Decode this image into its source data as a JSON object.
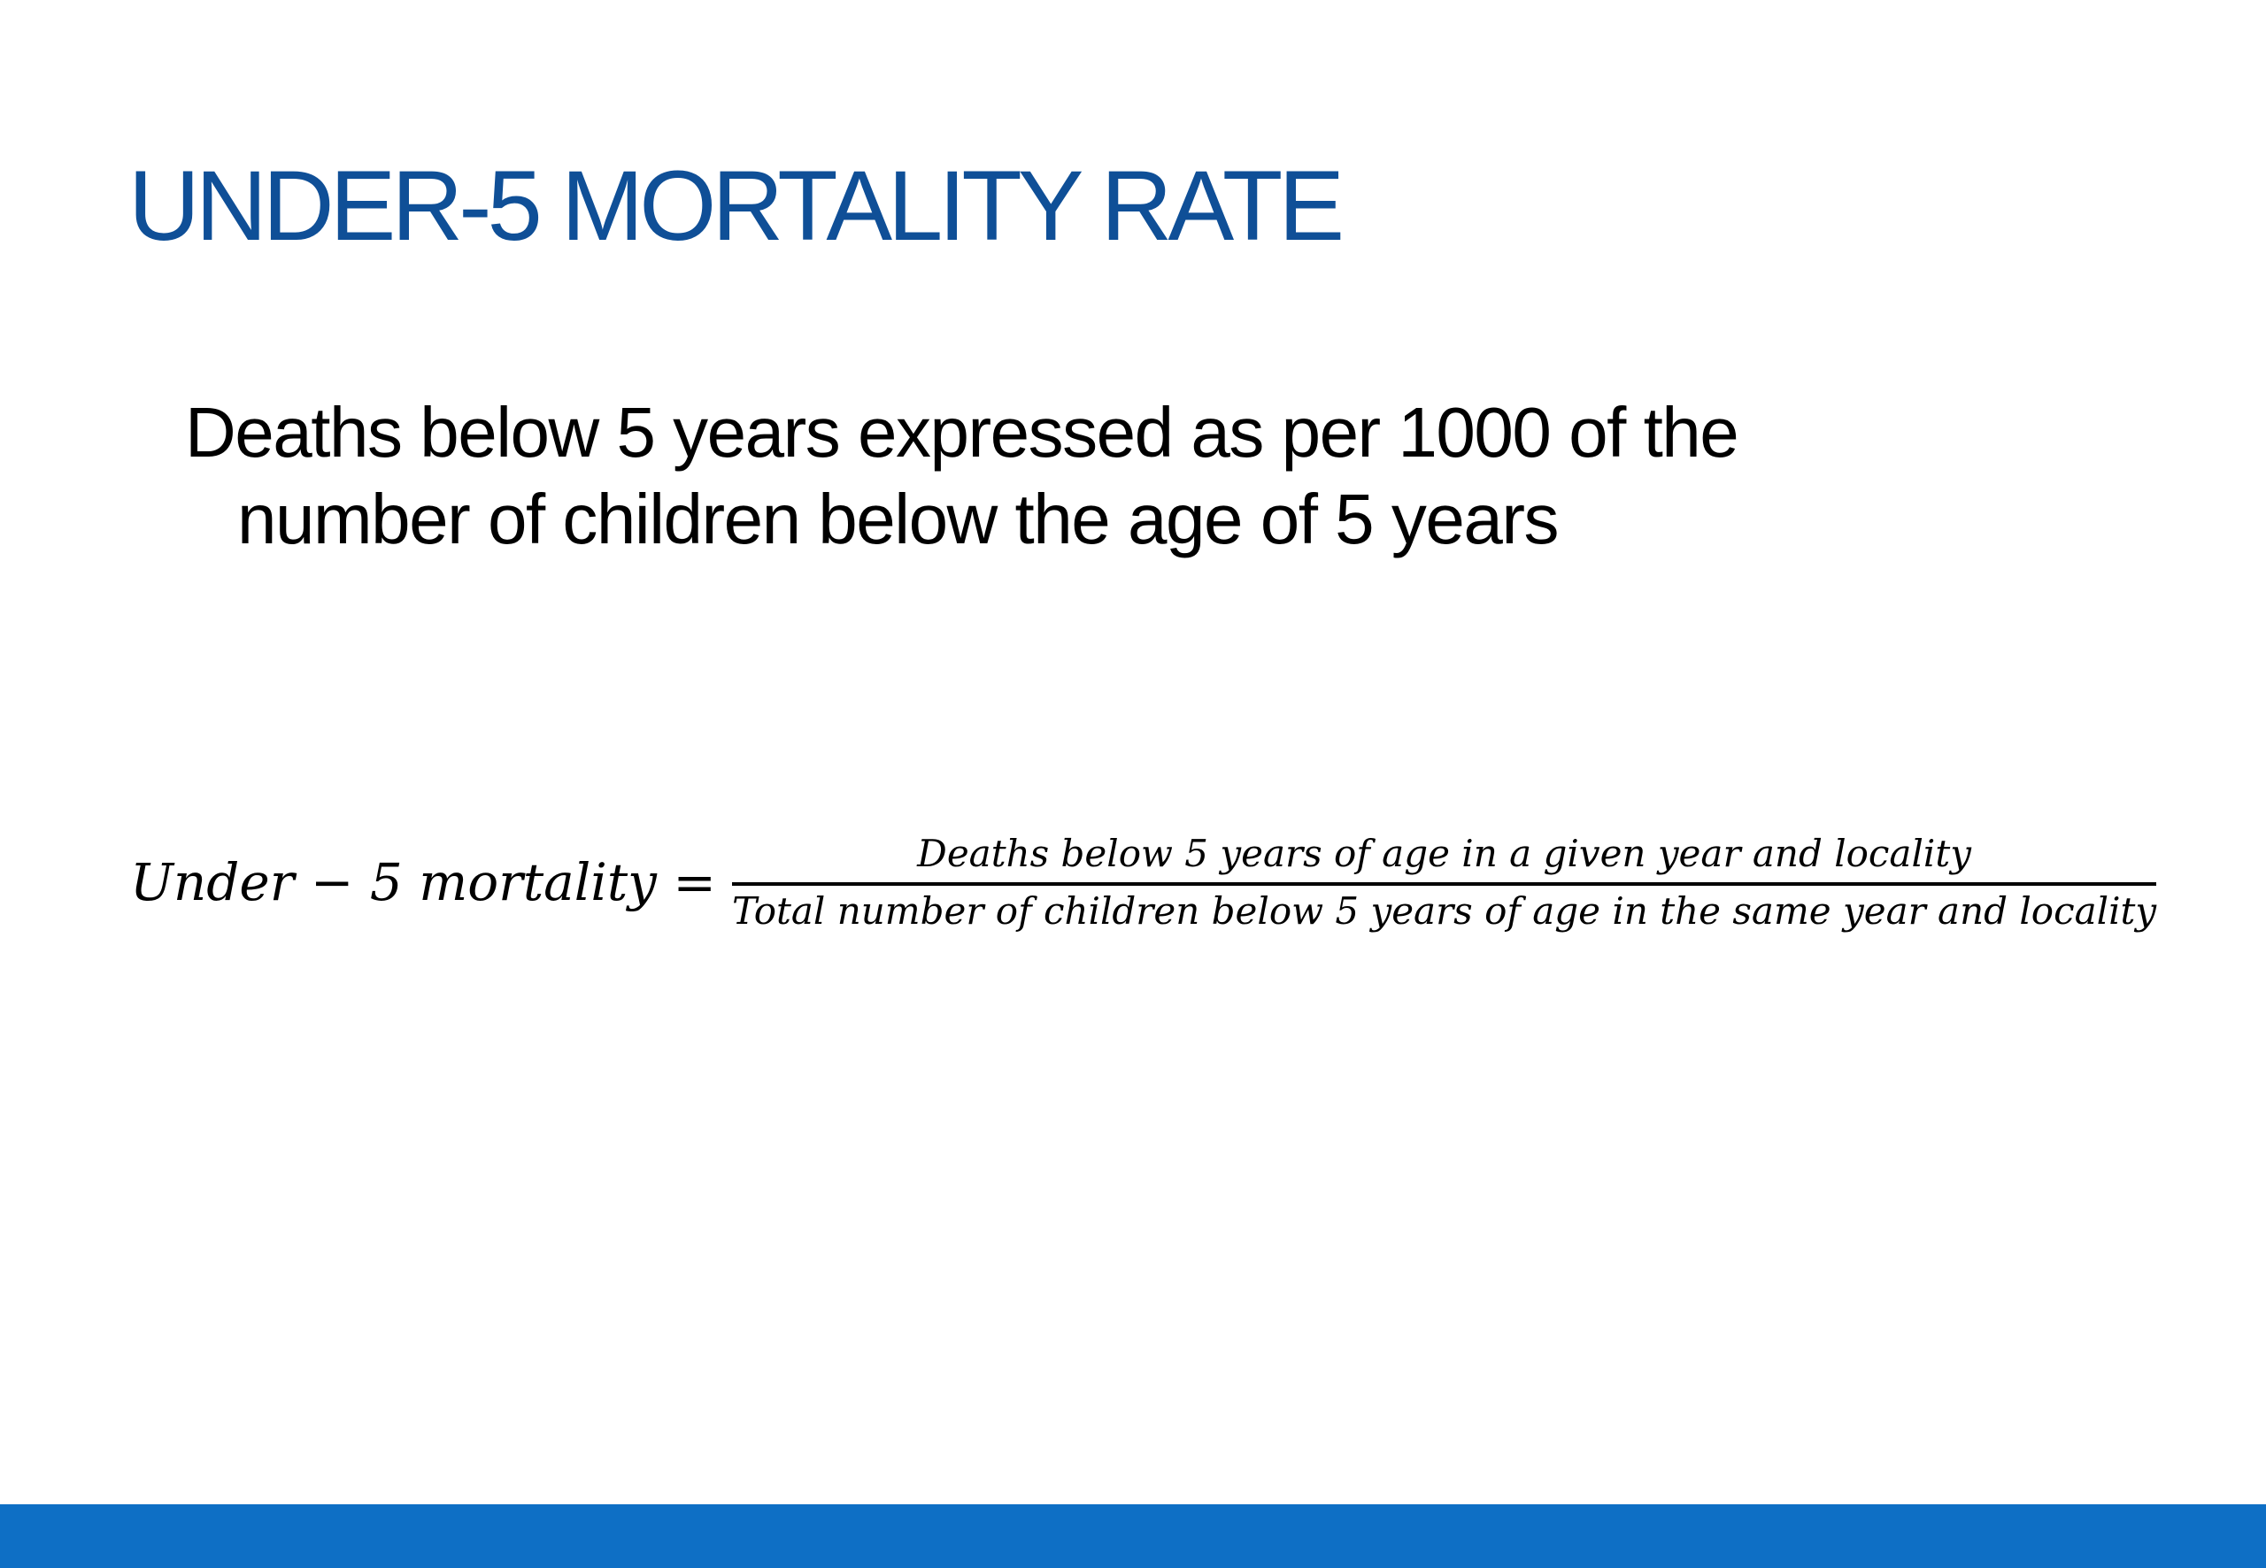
{
  "slide": {
    "title": "UNDER-5 MORTALITY RATE",
    "definition_line1": "Deaths below 5 years expressed as per 1000 of the",
    "definition_line2": "number of children below the age of 5 years",
    "formula": {
      "lhs": "Under − 5 mortality =",
      "numerator": "Deaths below 5 years of age in a given year and locality",
      "denominator": "Total number of children below 5 years of age in the same year and locality"
    },
    "colors": {
      "title": "#0f4f97",
      "footer_bar": "#0e6fc5"
    }
  }
}
